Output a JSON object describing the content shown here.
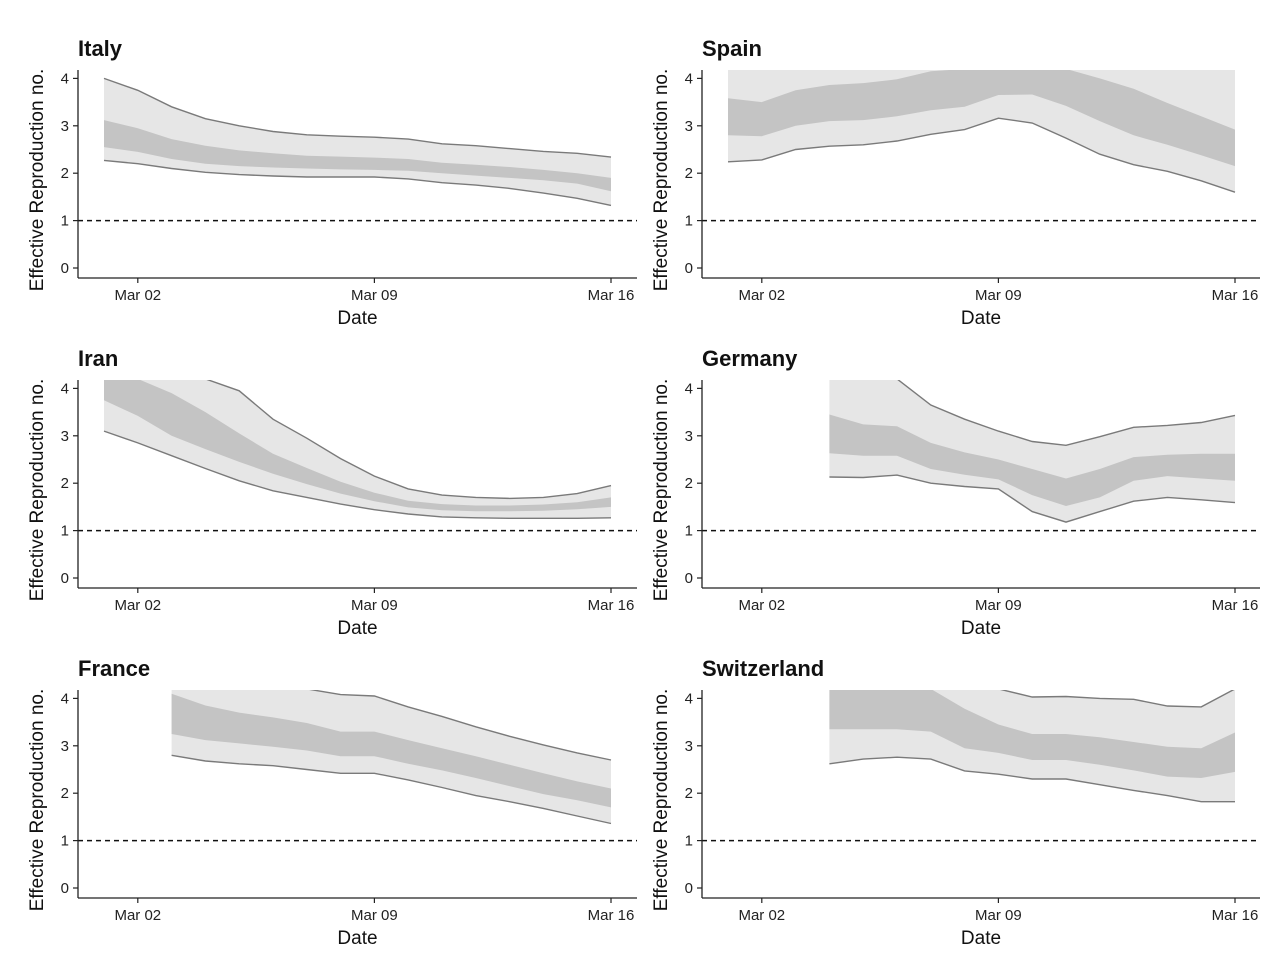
{
  "colors": {
    "outer_band": "#e6e6e6",
    "inner_band": "#c4c4c4",
    "bound_line": "#7a7a7a",
    "threshold_line": "#111111",
    "axis": "#222222"
  },
  "chart_data": [
    {
      "type": "area",
      "title": "Italy",
      "xlabel": "Date",
      "ylabel": "Effective Reproduction no.",
      "x_ticks": [
        "Mar 02",
        "Mar 09",
        "Mar 16"
      ],
      "y_ticks": [
        0,
        1,
        2,
        3,
        4
      ],
      "ylim": [
        0,
        4.2
      ],
      "threshold": 1,
      "x": [
        "Mar 01",
        "Mar 02",
        "Mar 03",
        "Mar 04",
        "Mar 05",
        "Mar 06",
        "Mar 07",
        "Mar 08",
        "Mar 09",
        "Mar 10",
        "Mar 11",
        "Mar 12",
        "Mar 13",
        "Mar 14",
        "Mar 15",
        "Mar 16"
      ],
      "upper_outer": [
        4.0,
        3.75,
        3.4,
        3.15,
        3.0,
        2.88,
        2.81,
        2.78,
        2.76,
        2.72,
        2.62,
        2.58,
        2.52,
        2.46,
        2.42,
        2.34
      ],
      "upper_inner": [
        3.12,
        2.95,
        2.72,
        2.58,
        2.48,
        2.42,
        2.37,
        2.35,
        2.33,
        2.3,
        2.22,
        2.18,
        2.13,
        2.07,
        2.0,
        1.9
      ],
      "lower_inner": [
        2.55,
        2.45,
        2.3,
        2.2,
        2.15,
        2.12,
        2.1,
        2.08,
        2.07,
        2.05,
        2.0,
        1.95,
        1.9,
        1.85,
        1.78,
        1.62
      ],
      "lower_outer": [
        2.27,
        2.2,
        2.1,
        2.02,
        1.97,
        1.94,
        1.92,
        1.92,
        1.92,
        1.88,
        1.8,
        1.75,
        1.68,
        1.58,
        1.47,
        1.32
      ]
    },
    {
      "type": "area",
      "title": "Spain",
      "xlabel": "Date",
      "ylabel": "Effective Reproduction no.",
      "x_ticks": [
        "Mar 02",
        "Mar 09",
        "Mar 16"
      ],
      "y_ticks": [
        0,
        1,
        2,
        3,
        4
      ],
      "ylim": [
        0,
        4.2
      ],
      "threshold": 1,
      "x": [
        "Mar 01",
        "Mar 02",
        "Mar 03",
        "Mar 04",
        "Mar 05",
        "Mar 06",
        "Mar 07",
        "Mar 08",
        "Mar 09",
        "Mar 10",
        "Mar 11",
        "Mar 12",
        "Mar 13",
        "Mar 14",
        "Mar 15",
        "Mar 16"
      ],
      "upper_outer": [
        4.2,
        4.2,
        4.2,
        4.2,
        4.2,
        4.2,
        4.2,
        4.2,
        4.2,
        4.2,
        4.2,
        4.2,
        4.2,
        4.2,
        4.2,
        4.2
      ],
      "upper_inner": [
        3.58,
        3.5,
        3.75,
        3.86,
        3.9,
        3.98,
        4.15,
        4.2,
        4.2,
        4.2,
        4.2,
        4.0,
        3.78,
        3.48,
        3.2,
        2.92
      ],
      "lower_inner": [
        2.8,
        2.78,
        3.0,
        3.1,
        3.12,
        3.2,
        3.33,
        3.4,
        3.65,
        3.66,
        3.42,
        3.1,
        2.8,
        2.6,
        2.38,
        2.15
      ],
      "lower_outer": [
        2.24,
        2.28,
        2.5,
        2.57,
        2.6,
        2.68,
        2.82,
        2.92,
        3.16,
        3.06,
        2.74,
        2.4,
        2.18,
        2.04,
        1.84,
        1.6
      ]
    },
    {
      "type": "area",
      "title": "Iran",
      "xlabel": "Date",
      "ylabel": "Effective Reproduction no.",
      "x_ticks": [
        "Mar 02",
        "Mar 09",
        "Mar 16"
      ],
      "y_ticks": [
        0,
        1,
        2,
        3,
        4
      ],
      "ylim": [
        0,
        4.2
      ],
      "threshold": 1,
      "x": [
        "Mar 01",
        "Mar 02",
        "Mar 03",
        "Mar 04",
        "Mar 05",
        "Mar 06",
        "Mar 07",
        "Mar 08",
        "Mar 09",
        "Mar 10",
        "Mar 11",
        "Mar 12",
        "Mar 13",
        "Mar 14",
        "Mar 15",
        "Mar 16"
      ],
      "upper_outer": [
        4.2,
        4.2,
        4.2,
        4.2,
        3.95,
        3.35,
        2.95,
        2.52,
        2.15,
        1.88,
        1.75,
        1.7,
        1.68,
        1.7,
        1.78,
        1.95
      ],
      "upper_inner": [
        4.2,
        4.2,
        3.9,
        3.5,
        3.05,
        2.62,
        2.32,
        2.03,
        1.8,
        1.63,
        1.56,
        1.53,
        1.53,
        1.55,
        1.6,
        1.7
      ],
      "lower_inner": [
        3.75,
        3.42,
        3.0,
        2.72,
        2.45,
        2.2,
        1.98,
        1.78,
        1.62,
        1.49,
        1.43,
        1.41,
        1.41,
        1.42,
        1.45,
        1.5
      ],
      "lower_outer": [
        3.1,
        2.85,
        2.58,
        2.31,
        2.05,
        1.84,
        1.7,
        1.56,
        1.44,
        1.35,
        1.29,
        1.27,
        1.26,
        1.26,
        1.26,
        1.27
      ]
    },
    {
      "type": "area",
      "title": "Germany",
      "xlabel": "Date",
      "ylabel": "Effective Reproduction no.",
      "x_ticks": [
        "Mar 02",
        "Mar 09",
        "Mar 16"
      ],
      "y_ticks": [
        0,
        1,
        2,
        3,
        4
      ],
      "ylim": [
        0,
        4.2
      ],
      "threshold": 1,
      "x": [
        "Mar 04",
        "Mar 05",
        "Mar 06",
        "Mar 07",
        "Mar 08",
        "Mar 09",
        "Mar 10",
        "Mar 11",
        "Mar 12",
        "Mar 13",
        "Mar 14",
        "Mar 15",
        "Mar 16"
      ],
      "upper_outer": [
        4.2,
        4.2,
        4.2,
        3.65,
        3.35,
        3.1,
        2.88,
        2.8,
        2.98,
        3.18,
        3.22,
        3.28,
        3.43
      ],
      "upper_inner": [
        3.45,
        3.24,
        3.2,
        2.85,
        2.65,
        2.5,
        2.3,
        2.1,
        2.3,
        2.55,
        2.6,
        2.62,
        2.62
      ],
      "lower_inner": [
        2.63,
        2.58,
        2.58,
        2.3,
        2.18,
        2.08,
        1.75,
        1.52,
        1.7,
        2.05,
        2.15,
        2.1,
        2.05
      ],
      "lower_outer": [
        2.13,
        2.12,
        2.17,
        2.0,
        1.93,
        1.88,
        1.4,
        1.18,
        1.4,
        1.62,
        1.7,
        1.65,
        1.59
      ]
    },
    {
      "type": "area",
      "title": "France",
      "xlabel": "Date",
      "ylabel": "Effective Reproduction no.",
      "x_ticks": [
        "Mar 02",
        "Mar 09",
        "Mar 16"
      ],
      "y_ticks": [
        0,
        1,
        2,
        3,
        4
      ],
      "ylim": [
        0,
        4.2
      ],
      "threshold": 1,
      "x": [
        "Mar 03",
        "Mar 04",
        "Mar 05",
        "Mar 06",
        "Mar 07",
        "Mar 08",
        "Mar 09",
        "Mar 10",
        "Mar 11",
        "Mar 12",
        "Mar 13",
        "Mar 14",
        "Mar 15",
        "Mar 16"
      ],
      "upper_outer": [
        4.2,
        4.2,
        4.2,
        4.2,
        4.2,
        4.08,
        4.05,
        3.82,
        3.62,
        3.4,
        3.2,
        3.02,
        2.85,
        2.7
      ],
      "upper_inner": [
        4.1,
        3.85,
        3.7,
        3.6,
        3.48,
        3.3,
        3.3,
        3.12,
        2.95,
        2.78,
        2.6,
        2.42,
        2.25,
        2.1
      ],
      "lower_inner": [
        3.25,
        3.12,
        3.05,
        2.98,
        2.9,
        2.78,
        2.78,
        2.62,
        2.48,
        2.32,
        2.15,
        1.98,
        1.85,
        1.7
      ],
      "lower_outer": [
        2.8,
        2.68,
        2.62,
        2.58,
        2.5,
        2.42,
        2.42,
        2.28,
        2.12,
        1.95,
        1.82,
        1.68,
        1.52,
        1.36
      ]
    },
    {
      "type": "area",
      "title": "Switzerland",
      "xlabel": "Date",
      "ylabel": "Effective Reproduction no.",
      "x_ticks": [
        "Mar 02",
        "Mar 09",
        "Mar 16"
      ],
      "y_ticks": [
        0,
        1,
        2,
        3,
        4
      ],
      "ylim": [
        0,
        4.2
      ],
      "threshold": 1,
      "x": [
        "Mar 04",
        "Mar 05",
        "Mar 06",
        "Mar 07",
        "Mar 08",
        "Mar 09",
        "Mar 10",
        "Mar 11",
        "Mar 12",
        "Mar 13",
        "Mar 14",
        "Mar 15",
        "Mar 16"
      ],
      "upper_outer": [
        4.2,
        4.2,
        4.2,
        4.2,
        4.2,
        4.2,
        4.03,
        4.04,
        4.0,
        3.98,
        3.84,
        3.82,
        4.2
      ],
      "upper_inner": [
        4.2,
        4.2,
        4.2,
        4.2,
        3.78,
        3.45,
        3.25,
        3.25,
        3.18,
        3.08,
        2.98,
        2.95,
        3.28
      ],
      "lower_inner": [
        3.35,
        3.35,
        3.35,
        3.3,
        2.95,
        2.85,
        2.7,
        2.7,
        2.6,
        2.48,
        2.35,
        2.32,
        2.45
      ],
      "lower_outer": [
        2.62,
        2.72,
        2.76,
        2.72,
        2.47,
        2.4,
        2.3,
        2.3,
        2.18,
        2.06,
        1.95,
        1.82,
        1.82
      ]
    }
  ]
}
